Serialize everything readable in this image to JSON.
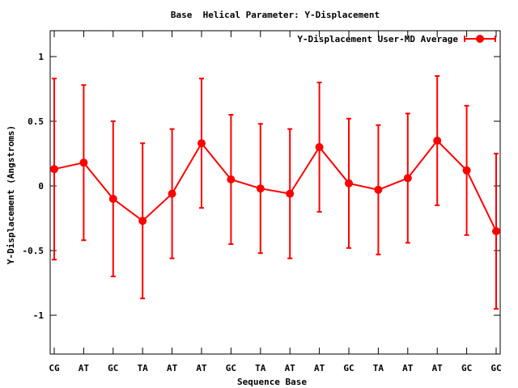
{
  "chart_data": {
    "type": "line",
    "title": "Base  Helical Parameter: Y-Displacement",
    "xlabel": "Sequence Base",
    "ylabel": "Y-Displacement (Angstroms)",
    "categories": [
      "CG",
      "AT",
      "GC",
      "TA",
      "AT",
      "AT",
      "GC",
      "TA",
      "AT",
      "AT",
      "GC",
      "TA",
      "AT",
      "AT",
      "GC",
      "GC"
    ],
    "ylim": [
      -1.3,
      1.2
    ],
    "yticks": [
      1,
      0.5,
      0,
      -0.5,
      -1
    ],
    "ytick_labels": [
      "1",
      "0.5",
      "0",
      "-0.5",
      "-1"
    ],
    "legend_position": "top-right",
    "grid": false,
    "series": [
      {
        "name": "Y-Displacement User-MD Average",
        "color": "#ff0000",
        "values": [
          0.13,
          0.18,
          -0.1,
          -0.27,
          -0.06,
          0.33,
          0.05,
          -0.02,
          -0.06,
          0.3,
          0.02,
          -0.03,
          0.06,
          0.35,
          0.12,
          -0.35
        ],
        "errors": [
          0.7,
          0.6,
          0.6,
          0.6,
          0.5,
          0.5,
          0.5,
          0.5,
          0.5,
          0.5,
          0.5,
          0.5,
          0.5,
          0.5,
          0.5,
          0.6
        ]
      }
    ]
  }
}
